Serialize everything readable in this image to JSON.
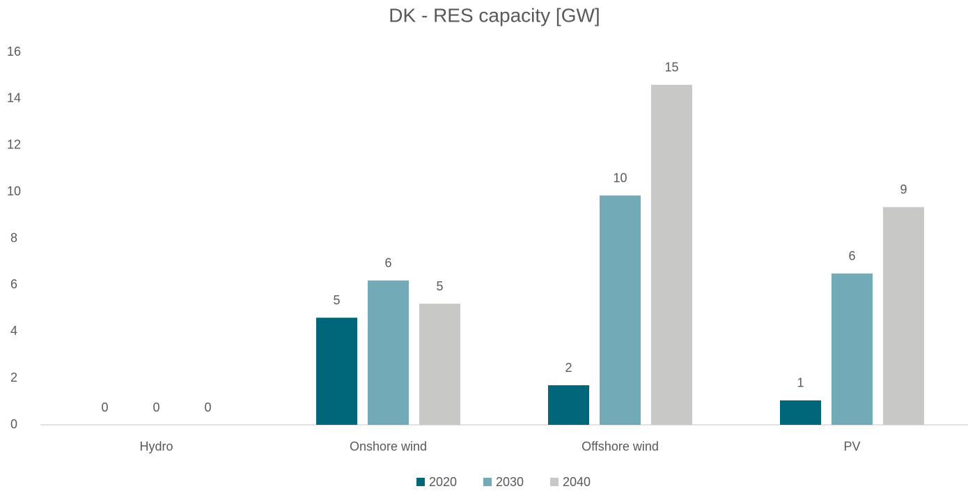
{
  "chart_data": {
    "type": "bar",
    "title": "DK - RES capacity [GW]",
    "categories": [
      "Hydro",
      "Onshore wind",
      "Offshore wind",
      "PV"
    ],
    "series": [
      {
        "name": "2020",
        "color": "#00677a",
        "values": [
          0,
          4.6,
          1.7,
          1.05
        ],
        "value_labels": [
          "0",
          "5",
          "2",
          "1"
        ]
      },
      {
        "name": "2030",
        "color": "#72abb7",
        "values": [
          0,
          6.2,
          9.85,
          6.5
        ],
        "value_labels": [
          "0",
          "6",
          "10",
          "6"
        ]
      },
      {
        "name": "2040",
        "color": "#c8c8c6",
        "values": [
          0,
          5.2,
          14.6,
          9.35
        ],
        "value_labels": [
          "0",
          "5",
          "15",
          "9"
        ]
      }
    ],
    "ylim": [
      0,
      16
    ],
    "yticks": [
      0,
      2,
      4,
      6,
      8,
      10,
      12,
      14,
      16
    ],
    "grid": false,
    "legend": "bottom"
  }
}
